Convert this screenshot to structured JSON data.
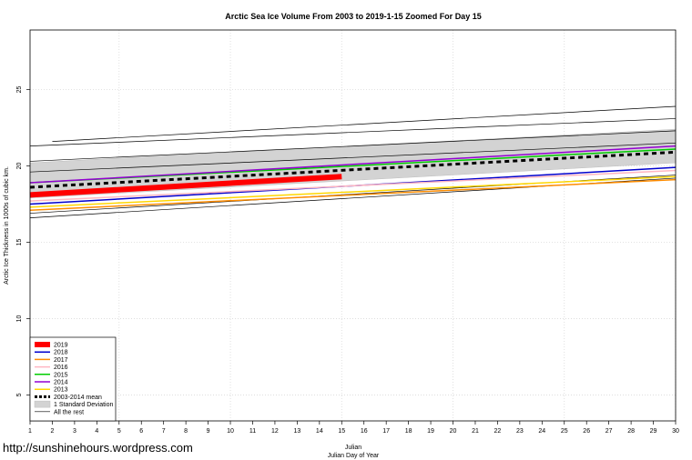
{
  "chart_data": {
    "type": "line",
    "title": "Arctic Sea Ice Volume From 2003 to 2019-1-15 Zoomed For Day 15",
    "xlabel_1": "Julian",
    "xlabel_2": "Julian Day of Year",
    "ylabel": "Arctic Ice Thickness in 1000s of cubic km.",
    "xlim": [
      1,
      30
    ],
    "ylim": [
      3.3,
      28.9
    ],
    "x_ticks": [
      1,
      2,
      3,
      4,
      5,
      6,
      7,
      8,
      9,
      10,
      11,
      12,
      13,
      14,
      15,
      16,
      17,
      18,
      19,
      20,
      21,
      22,
      23,
      24,
      25,
      26,
      27,
      28,
      29,
      30
    ],
    "y_ticks": [
      5,
      10,
      15,
      20,
      25
    ],
    "grid": true,
    "legend_position": "bottom-left",
    "std_band": {
      "name": "1 Standard Deviation",
      "x": [
        1,
        30
      ],
      "upper": [
        20.2,
        22.4
      ],
      "lower": [
        17.9,
        20.2
      ]
    },
    "series": [
      {
        "name": "2019",
        "color": "#ff0000",
        "width": 6,
        "dash": "",
        "x": [
          1,
          15
        ],
        "y": [
          18.1,
          19.3
        ]
      },
      {
        "name": "2018",
        "color": "#0000cd",
        "width": 1.5,
        "dash": "",
        "x": [
          1,
          30
        ],
        "y": [
          17.5,
          19.9
        ]
      },
      {
        "name": "2017",
        "color": "#ff8c00",
        "width": 1.5,
        "dash": "",
        "x": [
          1,
          30
        ],
        "y": [
          17.1,
          19.1
        ]
      },
      {
        "name": "2016",
        "color": "#ffb6c1",
        "width": 1.5,
        "dash": "",
        "x": [
          1,
          30
        ],
        "y": [
          17.7,
          19.7
        ]
      },
      {
        "name": "2015",
        "color": "#00cc00",
        "width": 1.5,
        "dash": "",
        "x": [
          1,
          30
        ],
        "y": [
          18.9,
          21.1
        ]
      },
      {
        "name": "2014",
        "color": "#9400d3",
        "width": 1.5,
        "dash": "",
        "x": [
          1,
          30
        ],
        "y": [
          18.9,
          21.3
        ]
      },
      {
        "name": "2013",
        "color": "#ffd700",
        "width": 1.5,
        "dash": "",
        "x": [
          1,
          30
        ],
        "y": [
          17.3,
          19.3
        ]
      },
      {
        "name": "2003-2014 mean",
        "color": "#000000",
        "width": 3,
        "dash": "5,4",
        "x": [
          1,
          30
        ],
        "y": [
          18.6,
          20.9
        ]
      },
      {
        "name": "All the rest",
        "color": "#000000",
        "width": 0.7,
        "dash": "",
        "x": [
          1,
          30
        ],
        "y": [
          16.6,
          19.2
        ]
      },
      {
        "name": "All the rest",
        "color": "#000000",
        "width": 0.7,
        "dash": "",
        "x": [
          1,
          30
        ],
        "y": [
          16.9,
          19.4
        ]
      },
      {
        "name": "All the rest",
        "color": "#000000",
        "width": 0.7,
        "dash": "",
        "x": [
          1,
          30
        ],
        "y": [
          19.6,
          21.5
        ]
      },
      {
        "name": "All the rest",
        "color": "#000000",
        "width": 0.7,
        "dash": "",
        "x": [
          1,
          30
        ],
        "y": [
          20.3,
          22.3
        ]
      },
      {
        "name": "All the rest",
        "color": "#000000",
        "width": 0.7,
        "dash": "",
        "x": [
          1,
          30
        ],
        "y": [
          21.3,
          23.1
        ]
      },
      {
        "name": "All the rest",
        "color": "#000000",
        "width": 0.7,
        "dash": "",
        "x": [
          2,
          30
        ],
        "y": [
          21.6,
          23.9
        ]
      }
    ],
    "legend": [
      {
        "label": "2019",
        "color": "#ff0000",
        "kind": "line",
        "width": 6
      },
      {
        "label": "2018",
        "color": "#0000cd",
        "kind": "line",
        "width": 1.5
      },
      {
        "label": "2017",
        "color": "#ff8c00",
        "kind": "line",
        "width": 1.5
      },
      {
        "label": "2016",
        "color": "#ffb6c1",
        "kind": "line",
        "width": 1.5
      },
      {
        "label": "2015",
        "color": "#00cc00",
        "kind": "line",
        "width": 1.5
      },
      {
        "label": "2014",
        "color": "#9400d3",
        "kind": "line",
        "width": 1.5
      },
      {
        "label": "2013",
        "color": "#ffd700",
        "kind": "line",
        "width": 1.5
      },
      {
        "label": "2003-2014 mean",
        "color": "#000000",
        "kind": "dashed",
        "width": 3
      },
      {
        "label": "1 Standard Deviation",
        "color": "#d3d3d3",
        "kind": "box",
        "width": 0
      },
      {
        "label": "All the rest",
        "color": "#000000",
        "kind": "line",
        "width": 0.7
      }
    ]
  },
  "watermark": "http://sunshinehours.wordpress.com"
}
